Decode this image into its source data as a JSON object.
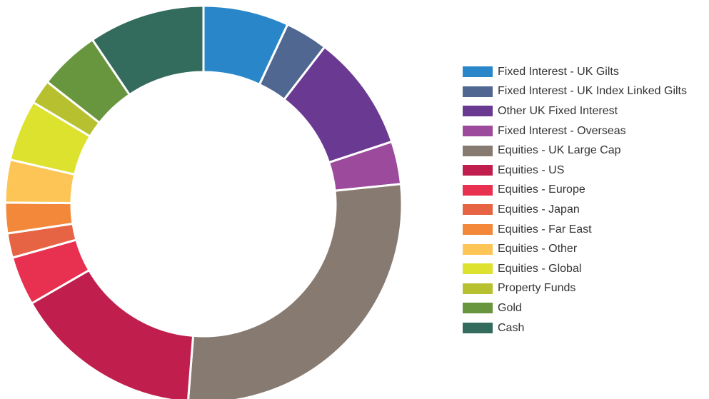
{
  "chart_data": {
    "type": "pie",
    "donut": true,
    "legend_position": "right",
    "title": "",
    "categories": [
      "Fixed Interest - UK Gilts",
      "Fixed Interest - UK Index Linked Gilts",
      "Other UK Fixed Interest",
      "Fixed Interest - Overseas",
      "Equities - UK Large Cap",
      "Equities - US",
      "Equities - Europe",
      "Equities - Japan",
      "Equities - Far East",
      "Equities - Other",
      "Equities - Global",
      "Property Funds",
      "Gold",
      "Cash"
    ],
    "values": [
      7,
      3.5,
      9.5,
      3.5,
      28,
      15.5,
      4,
      2,
      2.5,
      3.5,
      5,
      2,
      5,
      9.5
    ],
    "colors": [
      "#2987c9",
      "#4f6791",
      "#6a3a93",
      "#9b4a9c",
      "#877a70",
      "#c01f4d",
      "#e83050",
      "#e66444",
      "#f3883a",
      "#fdc555",
      "#dde22e",
      "#b7c130",
      "#68963e",
      "#336b5c"
    ]
  }
}
